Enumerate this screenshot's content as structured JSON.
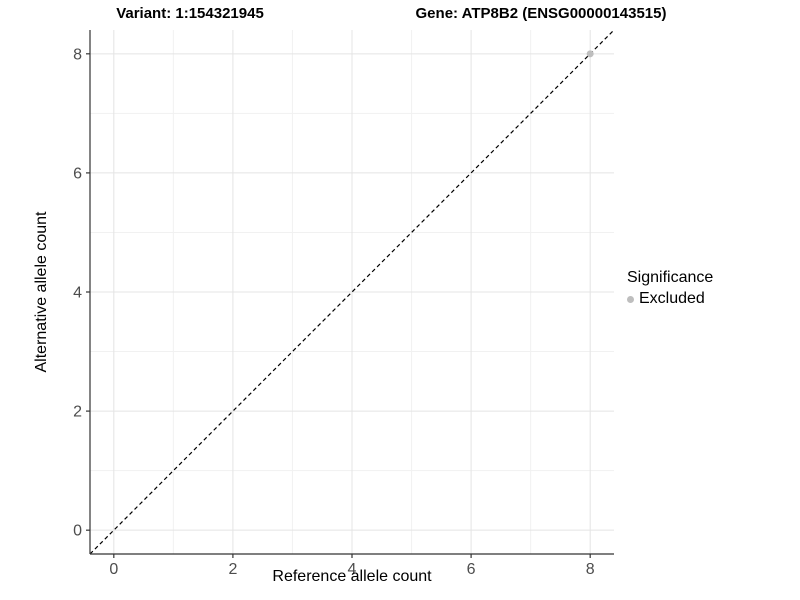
{
  "chart_data": {
    "type": "scatter",
    "title_left": "Variant: 1:154321945",
    "title_right": "Gene: ATP8B2 (ENSG00000143515)",
    "xlabel": "Reference allele count",
    "ylabel": "Alternative allele count",
    "xlim": [
      -0.4,
      8.4
    ],
    "ylim": [
      -0.4,
      8.4
    ],
    "x_ticks": [
      0,
      2,
      4,
      6,
      8
    ],
    "y_ticks": [
      0,
      2,
      4,
      6,
      8
    ],
    "x_minor_ticks": [
      1,
      3,
      5,
      7
    ],
    "y_minor_ticks": [
      1,
      3,
      5,
      7
    ],
    "grid": true,
    "reference_line": {
      "kind": "diagonal",
      "equation": "y = x",
      "style": "dashed",
      "color": "#000000"
    },
    "series": [
      {
        "name": "Excluded",
        "color": "#bebebe",
        "marker": "circle",
        "points": [
          {
            "x": 8,
            "y": 8
          }
        ]
      }
    ],
    "legend": {
      "title": "Significance",
      "position": "right",
      "items": [
        {
          "label": "Excluded",
          "color": "#bebebe"
        }
      ]
    },
    "colors": {
      "background": "#ffffff",
      "grid_major": "#e4e4e4",
      "grid_minor": "#f1f1f1",
      "axis_line": "#333333",
      "tick_mark": "#333333",
      "tick_label": "#4d4d4d",
      "text": "#000000"
    }
  }
}
